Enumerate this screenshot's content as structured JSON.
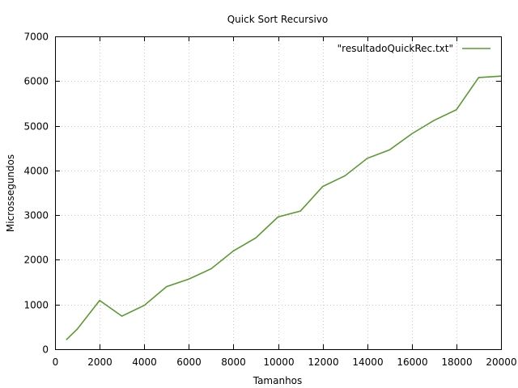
{
  "chart_data": {
    "type": "line",
    "title": "Quick Sort Recursivo",
    "xlabel": "Tamanhos",
    "ylabel": "Microssegundos",
    "xlim": [
      0,
      20000
    ],
    "ylim": [
      0,
      7000
    ],
    "xticks": [
      0,
      2000,
      4000,
      6000,
      8000,
      10000,
      12000,
      14000,
      16000,
      18000,
      20000
    ],
    "yticks": [
      0,
      1000,
      2000,
      3000,
      4000,
      5000,
      6000,
      7000
    ],
    "grid": true,
    "legend_position": "top-right",
    "series": [
      {
        "name": "\"resultadoQuickRec.txt\"",
        "color": "#5a9a32",
        "x": [
          500,
          1000,
          2000,
          3000,
          4000,
          5000,
          6000,
          7000,
          8000,
          9000,
          10000,
          11000,
          12000,
          13000,
          14000,
          15000,
          16000,
          17000,
          18000,
          19000,
          20000
        ],
        "y": [
          210,
          450,
          1090,
          740,
          980,
          1400,
          1570,
          1800,
          2200,
          2490,
          2960,
          3090,
          3640,
          3880,
          4270,
          4460,
          4820,
          5120,
          5360,
          6080,
          6110
        ]
      }
    ]
  }
}
